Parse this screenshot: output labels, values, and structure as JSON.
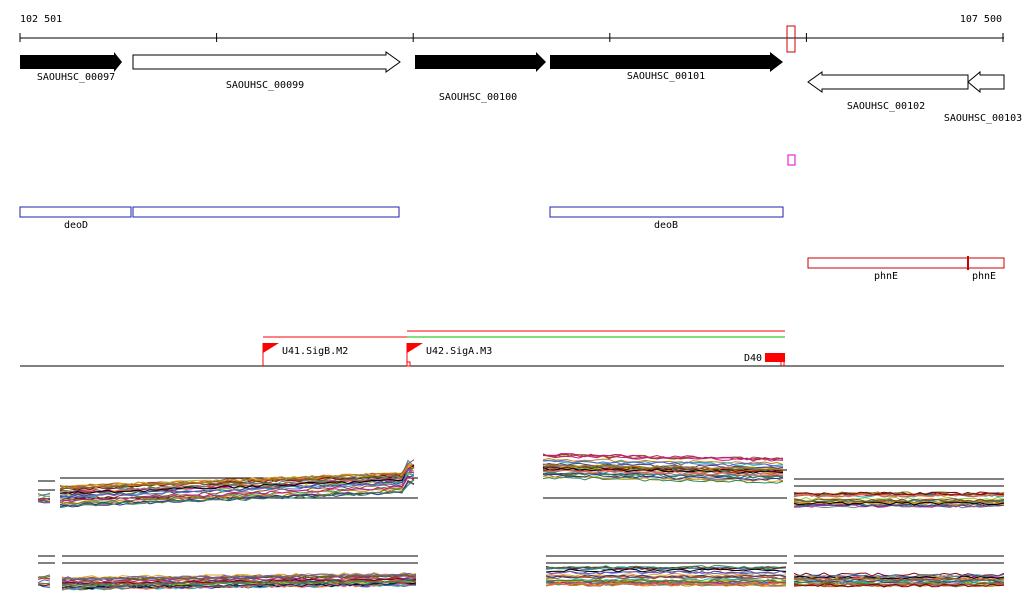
{
  "coords": {
    "start": "102 501",
    "end": "107 500"
  },
  "genes": [
    {
      "label": "SAOUHSC_00097",
      "strand": "+",
      "style": "filled"
    },
    {
      "label": "SAOUHSC_00099",
      "strand": "+",
      "style": "open"
    },
    {
      "label": "SAOUHSC_00100",
      "strand": "+",
      "style": "filled"
    },
    {
      "label": "SAOUHSC_00101",
      "strand": "+",
      "style": "filled"
    },
    {
      "label": "SAOUHSC_00102",
      "strand": "-",
      "style": "open"
    },
    {
      "label": "SAOUHSC_00103",
      "strand": "-",
      "style": "open"
    }
  ],
  "operons": [
    {
      "label": "deoD",
      "color": "#2222aa"
    },
    {
      "label": "deoB",
      "color": "#2222aa"
    },
    {
      "label": "phnE",
      "color": "#cc0000"
    },
    {
      "label": "phnE",
      "color": "#cc0000"
    }
  ],
  "promoters": [
    {
      "label": "U41.SigB.M2",
      "color": "#ff0000"
    },
    {
      "label": "U42.SigA.M3",
      "color": "#ff0000"
    }
  ],
  "terminator": {
    "label": "D40",
    "color": "#ff0000"
  },
  "colors": {
    "gene_fill": "#000000",
    "selection": "#cc0000",
    "marker": "#dd00dd",
    "transcript_red": "#ff0000",
    "transcript_green": "#00bb00"
  }
}
